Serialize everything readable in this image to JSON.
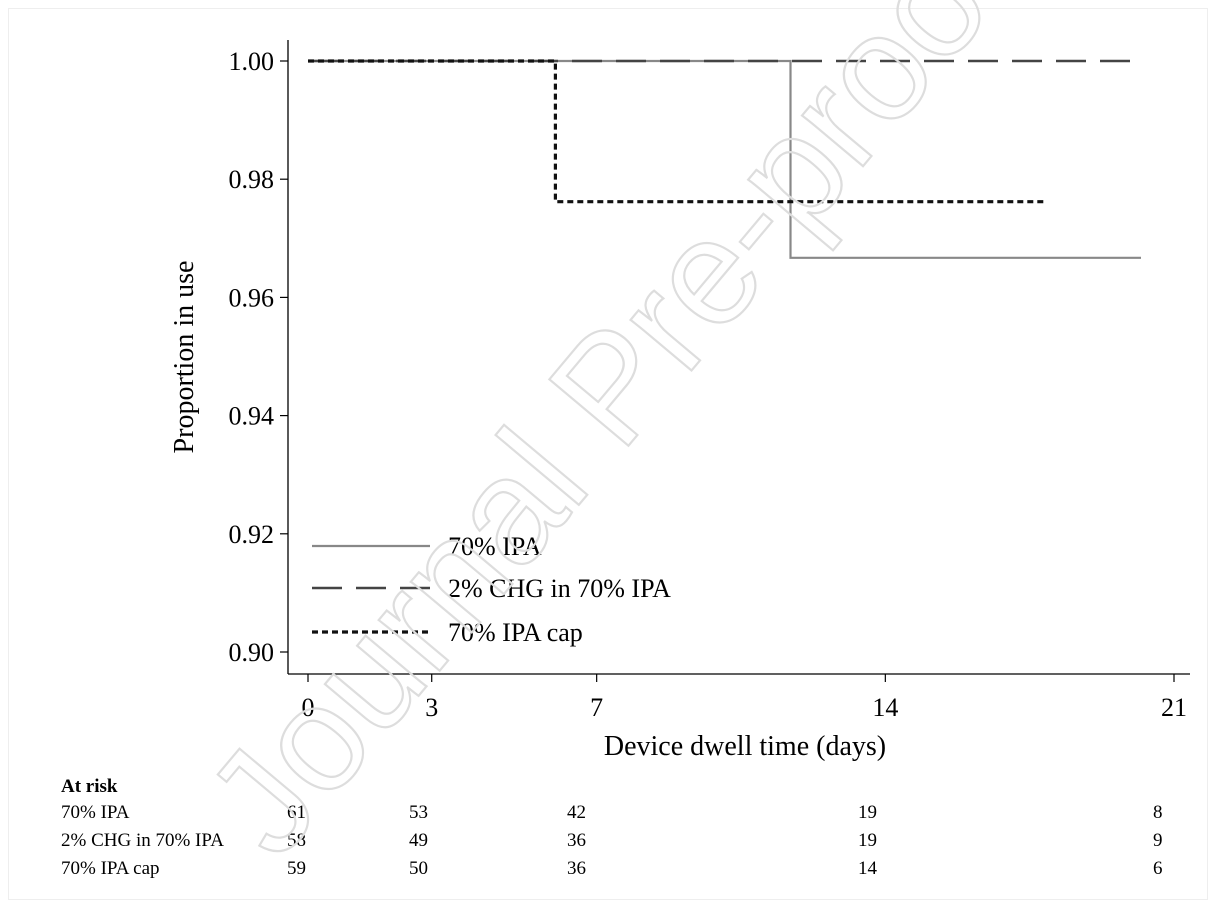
{
  "chart_data": {
    "type": "line",
    "step": true,
    "title": "",
    "xlabel": "Device dwell time (days)",
    "ylabel": "Proportion in use",
    "xlim": [
      0,
      21
    ],
    "ylim": [
      0.9,
      1.0
    ],
    "x_ticks": [
      0,
      3,
      7,
      14,
      21
    ],
    "x_tick_labels": [
      "0",
      "3",
      "7",
      "14",
      "21"
    ],
    "y_ticks": [
      0.9,
      0.92,
      0.94,
      0.96,
      0.98,
      1.0
    ],
    "y_tick_labels": [
      "0.90",
      "0.92",
      "0.94",
      "0.96",
      "0.98",
      "1.00"
    ],
    "grid": false,
    "legend_position": "bottom-left",
    "series": [
      {
        "name": "70% IPA",
        "color": "#888888",
        "dash": "solid",
        "points": [
          [
            0,
            1.0
          ],
          [
            11.7,
            1.0
          ],
          [
            11.7,
            0.9667
          ],
          [
            20.2,
            0.9667
          ]
        ]
      },
      {
        "name": "2% CHG in 70% IPA",
        "color": "#444444",
        "dash": "long-dash",
        "points": [
          [
            0,
            1.0
          ],
          [
            20.0,
            1.0
          ]
        ]
      },
      {
        "name": "70% IPA cap",
        "color": "#111111",
        "dash": "dotted",
        "points": [
          [
            0,
            1.0
          ],
          [
            6.0,
            1.0
          ],
          [
            6.0,
            0.9762
          ],
          [
            17.9,
            0.9762
          ]
        ]
      }
    ],
    "at_risk": {
      "header": "At risk",
      "times": [
        0,
        3,
        7,
        14,
        21
      ],
      "rows": [
        {
          "label": "70% IPA",
          "values": [
            "61",
            "53",
            "42",
            "19",
            "8"
          ]
        },
        {
          "label": "2% CHG in 70% IPA",
          "values": [
            "58",
            "49",
            "36",
            "19",
            "9"
          ]
        },
        {
          "label": "70% IPA cap",
          "values": [
            "59",
            "50",
            "36",
            "14",
            "6"
          ]
        }
      ]
    }
  },
  "watermark": {
    "text": "Journal Pre-proof",
    "color": "#dddddd"
  }
}
